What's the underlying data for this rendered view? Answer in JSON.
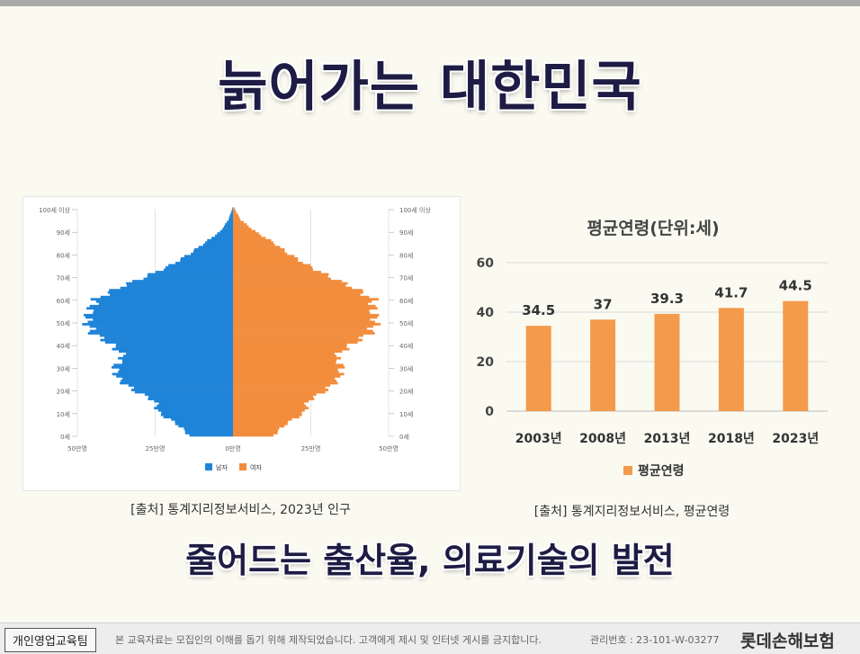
{
  "slide": {
    "title": "늙어가는 대한민국",
    "subtitle": "줄어드는 출산율, 의료기술의 발전"
  },
  "footer": {
    "team": "개인영업교육팀",
    "notice": "본 교육자료는 모집인의 이해를 돕기 위해 제작되었습니다. 고객에게 제시 및 인터넷 게시를 금지합니다.",
    "mgmt_no": "관리번호 : 23-101-W-03277",
    "brand": "롯데손해보험"
  },
  "colors": {
    "male": "#1f84d8",
    "female": "#f28d3d",
    "bar": "#f49a4b",
    "title": "#1e1c44"
  },
  "chart_data": [
    {
      "type": "bar",
      "subtype": "population-pyramid",
      "source": "[출처] 통계지리정보서비스, 2023년 인구",
      "age_axis_labels": [
        "100세 이상",
        "90세",
        "80세",
        "70세",
        "60세",
        "50세",
        "40세",
        "30세",
        "20세",
        "10세",
        "0세"
      ],
      "x_tick_labels": [
        "50만명",
        "25만명",
        "0만명",
        "25만명",
        "50만명"
      ],
      "xlim": [
        -50,
        50
      ],
      "legend": [
        "남자",
        "여자"
      ],
      "legend_position": "bottom",
      "ages_step5": [
        0,
        5,
        10,
        15,
        20,
        25,
        30,
        35,
        40,
        45,
        50,
        55,
        60,
        65,
        70,
        75,
        80,
        85,
        90,
        95,
        100
      ],
      "male": [
        14,
        18,
        24,
        25,
        32,
        37,
        38,
        35,
        39,
        45,
        47,
        46,
        44,
        37,
        28,
        20,
        14,
        9,
        4,
        1.5,
        0.2
      ],
      "female": [
        13,
        17,
        23,
        24,
        30,
        34,
        35,
        33,
        38,
        44,
        46,
        45,
        45,
        39,
        31,
        24,
        18,
        13,
        7,
        2.5,
        0.5
      ]
    },
    {
      "type": "bar",
      "title": "평균연령(단위:세)",
      "categories": [
        "2003년",
        "2008년",
        "2013년",
        "2018년",
        "2023년"
      ],
      "series": [
        {
          "name": "평균연령",
          "values": [
            34.5,
            37,
            39.3,
            41.7,
            44.5
          ]
        }
      ],
      "ylim": [
        0,
        60
      ],
      "y_ticks": [
        0,
        20,
        40,
        60
      ],
      "grid": true,
      "legend_position": "bottom",
      "source": "[출처] 통계지리정보서비스, 평균연령"
    }
  ]
}
